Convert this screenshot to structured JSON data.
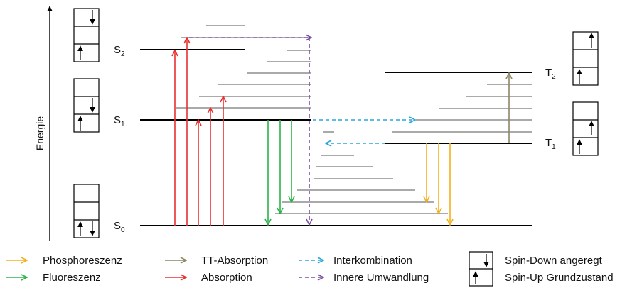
{
  "axis": {
    "label": "Energie"
  },
  "states": {
    "s0": {
      "letter": "S",
      "sub": "0"
    },
    "s1": {
      "letter": "S",
      "sub": "1"
    },
    "s2": {
      "letter": "S",
      "sub": "2"
    },
    "t1": {
      "letter": "T",
      "sub": "1"
    },
    "t2": {
      "letter": "T",
      "sub": "2"
    }
  },
  "legend": {
    "phosphorescence": {
      "label": "Phosphoreszenz",
      "color": "#f2b01e"
    },
    "fluorescence": {
      "label": "Fluoreszenz",
      "color": "#2db34a"
    },
    "tt_absorption": {
      "label": "TT-Absorption",
      "color": "#8e8763"
    },
    "absorption": {
      "label": "Absorption",
      "color": "#e8312f"
    },
    "intersystem_crossing": {
      "label": "Interkombination",
      "color": "#29a6d8"
    },
    "internal_conversion": {
      "label": "Innere Umwandlung",
      "color": "#7a4fa3"
    },
    "spin_down": {
      "label": "Spin-Down angeregt"
    },
    "spin_up": {
      "label": "Spin-Up Grundzustand"
    }
  }
}
